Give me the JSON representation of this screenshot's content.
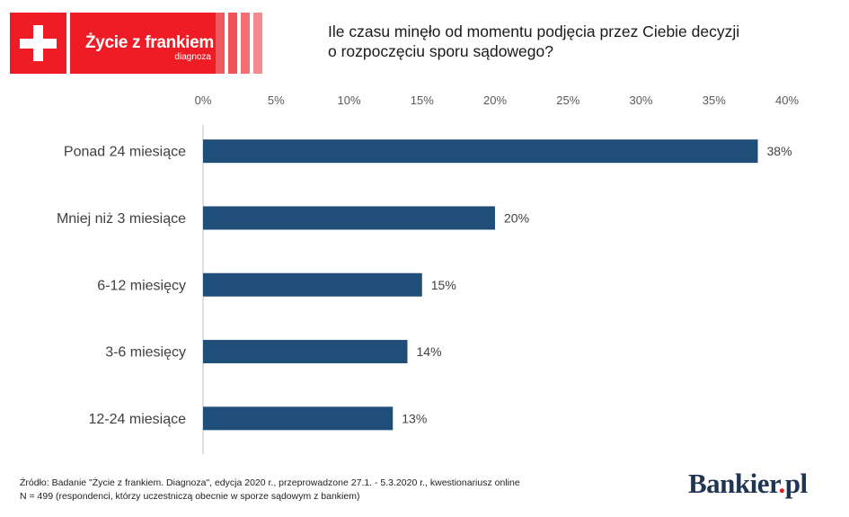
{
  "logo": {
    "title": "Życie z frankiem",
    "subtitle": "diagnoza",
    "colors": {
      "red": "#ee1c25",
      "stripe_light": "#f58a8e",
      "stripe_mid": "#f25157"
    }
  },
  "header": {
    "title_line1": "Ile czasu minęło od momentu podjęcia przez Ciebie decyzji",
    "title_line2": "o rozpoczęciu sporu sądowego?"
  },
  "chart_data": {
    "type": "bar",
    "orientation": "horizontal",
    "categories": [
      "Ponad 24 miesiące",
      "Mniej niż 3 miesiące",
      "6-12 miesięcy",
      "3-6 miesięcy",
      "12-24 miesiące"
    ],
    "values": [
      38,
      20,
      15,
      14,
      13
    ],
    "value_labels": [
      "38%",
      "20%",
      "15%",
      "14%",
      "13%"
    ],
    "xlim": [
      0,
      40
    ],
    "x_ticks": [
      0,
      5,
      10,
      15,
      20,
      25,
      30,
      35,
      40
    ],
    "x_tick_labels": [
      "0%",
      "5%",
      "10%",
      "15%",
      "20%",
      "25%",
      "30%",
      "35%",
      "40%"
    ],
    "x_axis_position": "top",
    "grid": false,
    "bar_color": "#1f4e79"
  },
  "footer": {
    "source_line": "Źródło: Badanie \"Życie z frankiem. Diagnoza\", edycja 2020 r., przeprowadzone 27.1. - 5.3.2020 r., kwestionariusz online",
    "n_line": "N = 499 (respondenci, którzy uczestniczą obecnie w sporze sądowym z bankiem)"
  },
  "brand": {
    "name": "Bankier",
    "dot": ".",
    "tld": "pl"
  }
}
